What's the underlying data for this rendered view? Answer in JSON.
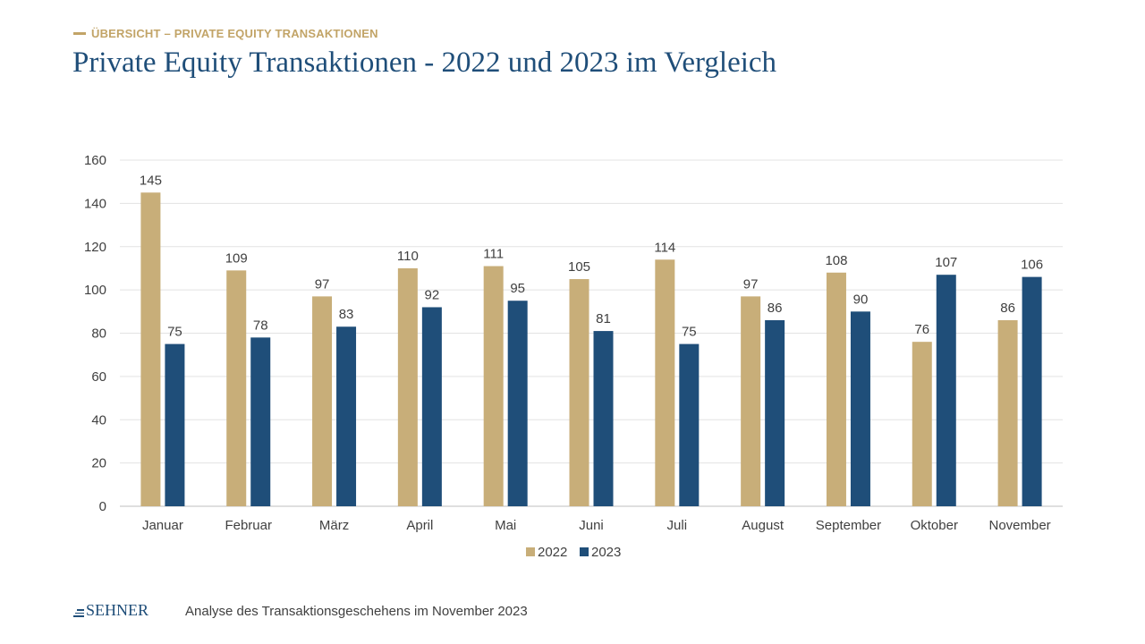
{
  "header": {
    "kicker": "ÜBERSICHT – PRIVATE EQUITY TRANSAKTIONEN",
    "title": "Private Equity Transaktionen - 2022 und 2023 im Vergleich"
  },
  "footer": {
    "logo": "SEHNER",
    "text": "Analyse des Transaktionsgeschehens im November 2023"
  },
  "colors": {
    "series_2022": "#c8ae79",
    "series_2023": "#1f4e79",
    "title": "#1f4e79",
    "kicker": "#c2a467"
  },
  "chart_data": {
    "type": "bar",
    "categories": [
      "Januar",
      "Februar",
      "März",
      "April",
      "Mai",
      "Juni",
      "Juli",
      "August",
      "September",
      "Oktober",
      "November"
    ],
    "series": [
      {
        "name": "2022",
        "values": [
          145,
          109,
          97,
          110,
          111,
          105,
          114,
          97,
          108,
          76,
          86
        ]
      },
      {
        "name": "2023",
        "values": [
          75,
          78,
          83,
          92,
          95,
          81,
          75,
          86,
          90,
          107,
          106
        ]
      }
    ],
    "title": "",
    "xlabel": "",
    "ylabel": "",
    "ylim": [
      0,
      160
    ],
    "yticks": [
      0,
      20,
      40,
      60,
      80,
      100,
      120,
      140,
      160
    ],
    "grid": true,
    "legend": "bottom"
  }
}
